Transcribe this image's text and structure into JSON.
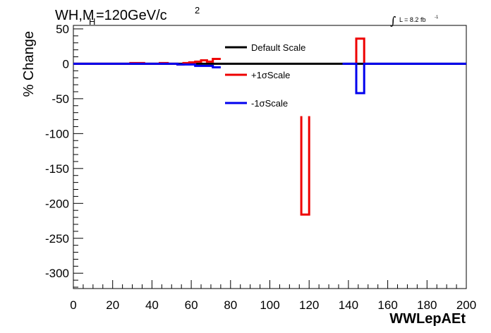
{
  "header": {
    "title_main": "WH,M",
    "title_sub": "H",
    "title_rest": "=120GeV/c",
    "title_sup": "2",
    "lumi_integral": "∫",
    "lumi_text": "L = 8.2 fb",
    "lumi_sup": "-1"
  },
  "chart_data": {
    "type": "line",
    "xlabel": "WWLepAEt",
    "ylabel": "% Change",
    "xlim": [
      0,
      200
    ],
    "ylim": [
      -322,
      55
    ],
    "xticks": [
      0,
      20,
      40,
      60,
      80,
      100,
      120,
      140,
      160,
      180,
      200
    ],
    "yticks": [
      50,
      0,
      -50,
      -100,
      -150,
      -200,
      -250,
      -300
    ],
    "legend": {
      "placement": "top-center",
      "entries": [
        "Default Scale",
        "+1σScale",
        "-1σScale"
      ]
    },
    "series": [
      {
        "name": "Default Scale",
        "color": "#000000",
        "segments": [
          [
            [
              0,
              0
            ],
            [
              200,
              0
            ]
          ]
        ]
      },
      {
        "name": "+1σScale",
        "color": "#ee0000",
        "segments": [
          [
            [
              0,
              0
            ],
            [
              29,
              0
            ],
            [
              29,
              1
            ],
            [
              36,
              1
            ],
            [
              36,
              0
            ],
            [
              44,
              0
            ],
            [
              44,
              1
            ],
            [
              48,
              1
            ],
            [
              48,
              0
            ],
            [
              53,
              0
            ],
            [
              53,
              -1
            ],
            [
              56,
              -1
            ],
            [
              56,
              0
            ],
            [
              56,
              1
            ],
            [
              59,
              1
            ],
            [
              59,
              2
            ],
            [
              62,
              2
            ],
            [
              62,
              3
            ],
            [
              65,
              3
            ],
            [
              65,
              5
            ],
            [
              68,
              5
            ],
            [
              68,
              3
            ],
            [
              71,
              3
            ],
            [
              71,
              7
            ],
            [
              75,
              7
            ]
          ],
          [
            [
              116,
              -75
            ],
            [
              116,
              -216
            ],
            [
              120,
              -216
            ],
            [
              120,
              -75
            ]
          ],
          [
            [
              144,
              0
            ],
            [
              144,
              36
            ],
            [
              148,
              36
            ],
            [
              148,
              0
            ]
          ]
        ]
      },
      {
        "name": "-1σScale",
        "color": "#0000ee",
        "segments": [
          [
            [
              0,
              0
            ],
            [
              53,
              0
            ],
            [
              53,
              -1
            ],
            [
              62,
              -1
            ],
            [
              62,
              -3
            ],
            [
              71,
              -3
            ],
            [
              71,
              -5
            ],
            [
              75,
              -5
            ]
          ],
          [
            [
              137,
              0
            ],
            [
              144,
              0
            ],
            [
              144,
              -42
            ],
            [
              148,
              -42
            ],
            [
              148,
              0
            ],
            [
              200,
              0
            ]
          ]
        ]
      }
    ]
  }
}
